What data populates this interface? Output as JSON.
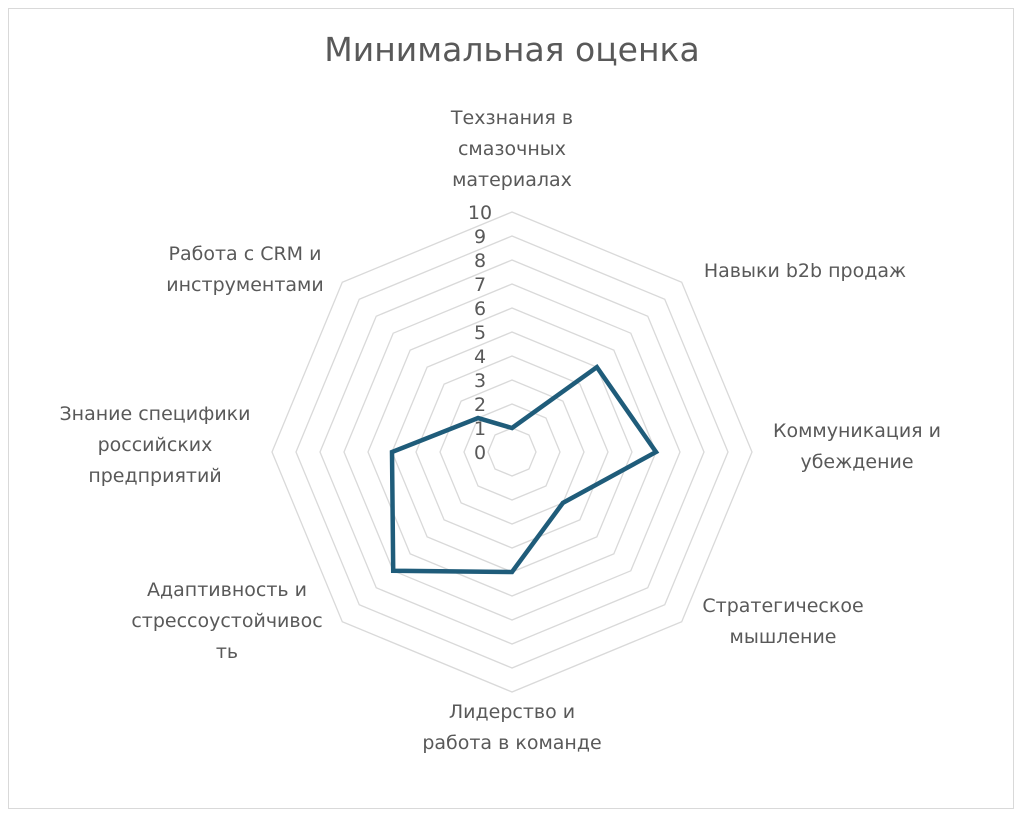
{
  "chart_data": {
    "type": "radar",
    "title": "Минимальная оценка",
    "categories": [
      "Техзнания в смазочных материалах",
      "Навыки b2b продаж",
      "Коммуникация и убеждение",
      "Стратегическое мышление",
      "Лидерство и работа в команде",
      "Адаптивность и стрессоустойчивость",
      "Знание специфики российских предприятий",
      "Работа с CRM и инструментами"
    ],
    "category_label_lines": [
      [
        "Техзнания в",
        "смазочных",
        "материалах"
      ],
      [
        "Навыки b2b продаж"
      ],
      [
        "Коммуникация и",
        "убеждение"
      ],
      [
        "Стратегическое",
        "мышление"
      ],
      [
        "Лидерство и",
        "работа в команде"
      ],
      [
        "Адаптивность и",
        "стрессоустойчивос",
        "ть"
      ],
      [
        "Знание специфики",
        "российских",
        "предприятий"
      ],
      [
        "Работа с CRM и",
        "инструментами"
      ]
    ],
    "series": [
      {
        "values": [
          1,
          5,
          6,
          3,
          5,
          7,
          5,
          2
        ]
      }
    ],
    "rlim": [
      0,
      10
    ],
    "ticks": [
      "0",
      "1",
      "2",
      "3",
      "4",
      "5",
      "6",
      "7",
      "8",
      "9",
      "10"
    ],
    "grid": true,
    "legend": "none",
    "colors": {
      "series": "#1f5c7a",
      "grid": "#d9d9d9",
      "text": "#595959"
    }
  }
}
